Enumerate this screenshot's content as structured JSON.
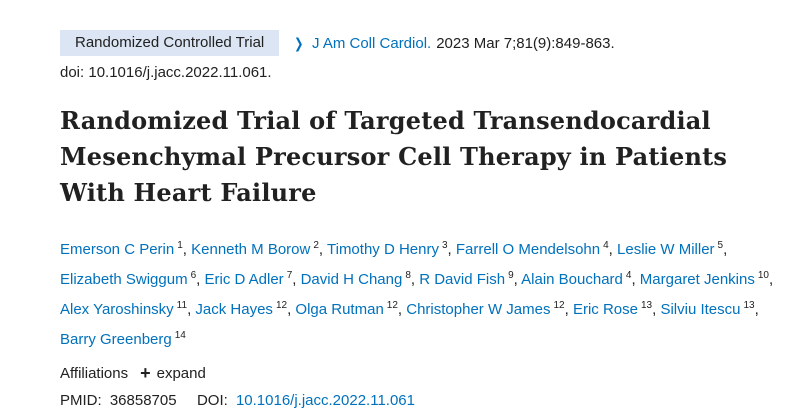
{
  "article": {
    "type_badge": "Randomized Controlled Trial",
    "journal": "J Am Coll Cardiol.",
    "citation": "2023 Mar 7;81(9):849-863.",
    "doi_line": "doi: 10.1016/j.jacc.2022.11.061.",
    "title": "Randomized Trial of Targeted Transendocardial Mesenchymal Precursor Cell Therapy in Patients With Heart Failure"
  },
  "authors": [
    {
      "name": "Emerson C Perin",
      "aff": "1"
    },
    {
      "name": "Kenneth M Borow",
      "aff": "2"
    },
    {
      "name": "Timothy D Henry",
      "aff": "3"
    },
    {
      "name": "Farrell O Mendelsohn",
      "aff": "4"
    },
    {
      "name": "Leslie W Miller",
      "aff": "5"
    },
    {
      "name": "Elizabeth Swiggum",
      "aff": "6"
    },
    {
      "name": "Eric D Adler",
      "aff": "7"
    },
    {
      "name": "David H Chang",
      "aff": "8"
    },
    {
      "name": "R David Fish",
      "aff": "9"
    },
    {
      "name": "Alain Bouchard",
      "aff": "4"
    },
    {
      "name": "Margaret Jenkins",
      "aff": "10"
    },
    {
      "name": "Alex Yaroshinsky",
      "aff": "11"
    },
    {
      "name": "Jack Hayes",
      "aff": "12"
    },
    {
      "name": "Olga Rutman",
      "aff": "12"
    },
    {
      "name": "Christopher W James",
      "aff": "12"
    },
    {
      "name": "Eric Rose",
      "aff": "13"
    },
    {
      "name": "Silviu Itescu",
      "aff": "13"
    },
    {
      "name": "Barry Greenberg",
      "aff": "14"
    }
  ],
  "affiliations": {
    "label": "Affiliations",
    "expand_label": "expand"
  },
  "ids": {
    "pmid_label": "PMID:",
    "pmid": "36858705",
    "doi_label": "DOI:",
    "doi": "10.1016/j.jacc.2022.11.061"
  },
  "colors": {
    "link": "#0071bc",
    "badge_bg": "#dbe5f3",
    "text": "#212121"
  },
  "icons": {
    "journal_chevron": "chevron-right-icon",
    "expand": "plus-icon"
  }
}
